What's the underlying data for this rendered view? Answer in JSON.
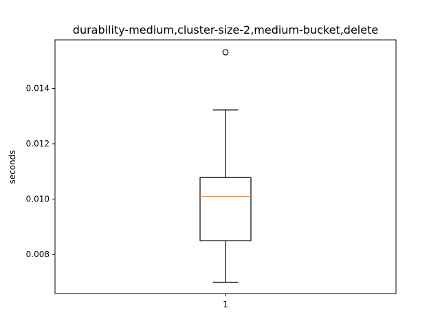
{
  "chart_data": {
    "type": "box",
    "title": "durability-medium,cluster-size-2,medium-bucket,delete",
    "xlabel": "",
    "ylabel": "seconds",
    "categories": [
      "1"
    ],
    "y_ticks": [
      0.008,
      0.01,
      0.012,
      0.014
    ],
    "y_tick_labels": [
      "0.008",
      "0.010",
      "0.012",
      "0.014"
    ],
    "ylim": [
      0.00659,
      0.01575
    ],
    "grid": false,
    "boxes": [
      {
        "category": "1",
        "whisker_low": 0.007,
        "q1": 0.0085,
        "median": 0.0101,
        "q3": 0.01078,
        "whisker_high": 0.01322,
        "outliers": [
          0.0153
        ]
      }
    ],
    "colors": {
      "box": "#000000",
      "median": "#ff7f0e",
      "outlier": "#000000"
    }
  }
}
